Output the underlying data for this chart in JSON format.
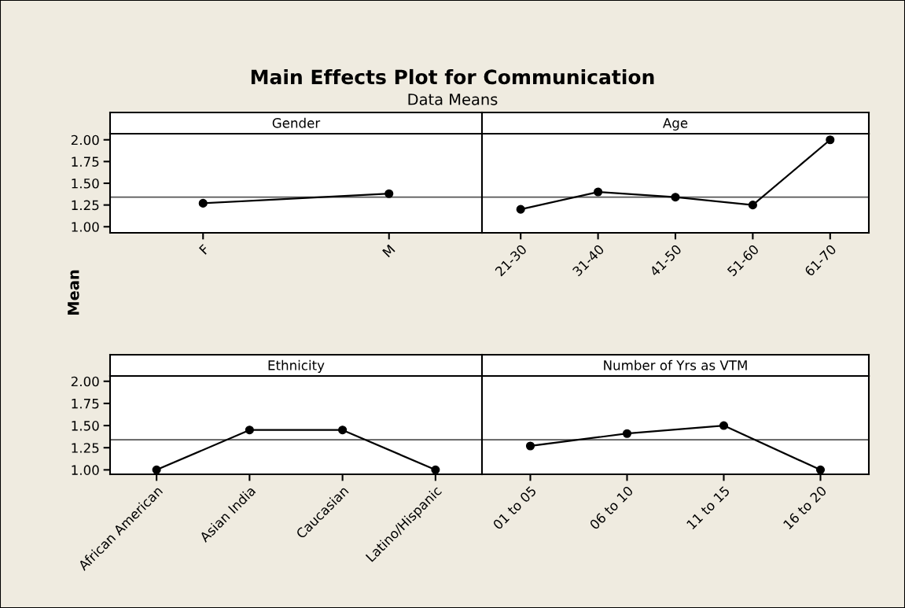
{
  "chart_data": [
    {
      "type": "line",
      "title": "Gender",
      "ylabel": "Mean",
      "annotations": [
        "Main Effects Plot for Communication",
        "Data Means"
      ],
      "categories": [
        "F",
        "M"
      ],
      "series": [
        {
          "color": "#000000",
          "values": [
            1.27,
            1.38
          ]
        }
      ],
      "ylim": [
        0.93,
        2.07
      ],
      "yticks": [
        {
          "value": 1,
          "label": "1.00"
        },
        {
          "value": 1.25,
          "label": "1.25"
        },
        {
          "value": 1.5,
          "label": "1.50"
        },
        {
          "value": 1.75,
          "label": "1.75"
        },
        {
          "value": 2,
          "label": "2.00"
        }
      ],
      "ref_lines": [
        {
          "axis": "y",
          "value": 1.34,
          "color": "#555555"
        }
      ],
      "marker": "circle",
      "line_style": "solid",
      "grid": false,
      "legend": false
    },
    {
      "type": "line",
      "title": "Age",
      "categories": [
        "21-30",
        "31-40",
        "41-50",
        "51-60",
        "61-70"
      ],
      "series": [
        {
          "color": "#000000",
          "values": [
            1.2,
            1.4,
            1.34,
            1.25,
            2.0
          ]
        }
      ],
      "ylim": [
        0.93,
        2.07
      ],
      "tick_labels": "x",
      "ref_lines": [
        {
          "axis": "y",
          "value": 1.34,
          "color": "#555555"
        }
      ],
      "marker": "circle",
      "line_style": "solid",
      "grid": false,
      "legend": false
    },
    {
      "type": "line",
      "title": "Ethnicity",
      "categories": [
        "African American",
        "Asian India",
        "Caucasian",
        "Latino/Hispanic"
      ],
      "series": [
        {
          "color": "#000000",
          "values": [
            1.0,
            1.45,
            1.45,
            1.0
          ]
        }
      ],
      "ylim": [
        0.95,
        2.06
      ],
      "yticks": [
        {
          "value": 1,
          "label": "1.00"
        },
        {
          "value": 1.25,
          "label": "1.25"
        },
        {
          "value": 1.5,
          "label": "1.50"
        },
        {
          "value": 1.75,
          "label": "1.75"
        },
        {
          "value": 2,
          "label": "2.00"
        }
      ],
      "ref_lines": [
        {
          "axis": "y",
          "value": 1.34,
          "color": "#555555"
        }
      ],
      "marker": "circle",
      "line_style": "solid",
      "grid": false,
      "legend": false
    },
    {
      "type": "line",
      "title": "Number of Yrs as VTM",
      "categories": [
        "01 to 05",
        "06 to 10",
        "11 to 15",
        "16 to 20"
      ],
      "series": [
        {
          "color": "#000000",
          "values": [
            1.27,
            1.41,
            1.5,
            1.0
          ]
        }
      ],
      "ylim": [
        0.95,
        2.06
      ],
      "tick_labels": "x",
      "ref_lines": [
        {
          "axis": "y",
          "value": 1.34,
          "color": "#555555"
        }
      ],
      "marker": "circle",
      "line_style": "solid",
      "grid": false,
      "legend": false
    }
  ]
}
